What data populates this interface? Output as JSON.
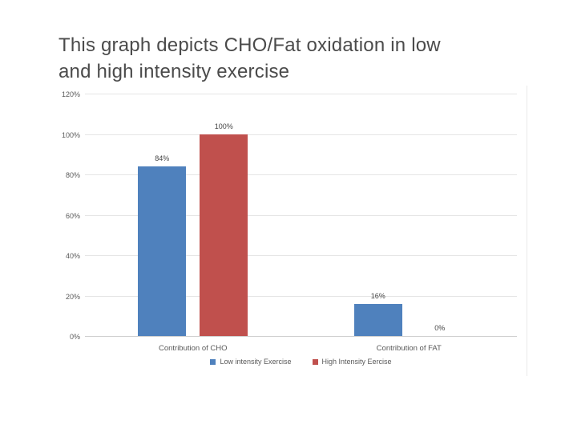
{
  "title": {
    "line1": "This graph depicts CHO/Fat oxidation in low",
    "line2": "and high intensity exercise",
    "full": "This graph depicts CHO/Fat oxidation in low and high intensity exercise"
  },
  "colors": {
    "series_blue": "#4f81bd",
    "series_red": "#c0504d",
    "axis_text": "#595959",
    "gridline": "#e5e5e5",
    "title_text": "#4b4b4b"
  },
  "chart_data": {
    "type": "bar",
    "categories": [
      "Contribution of CHO",
      "Contribution of FAT"
    ],
    "series": [
      {
        "name": "Low intensity Exercise",
        "color": "#4f81bd",
        "values": [
          84,
          16
        ],
        "labels": [
          "84%",
          "16%"
        ]
      },
      {
        "name": "High Intensity Eercise",
        "color": "#c0504d",
        "values": [
          100,
          0
        ],
        "labels": [
          "100%",
          "0%"
        ]
      }
    ],
    "ylim": [
      0,
      120
    ],
    "ytick_values": [
      0,
      20,
      40,
      60,
      80,
      100,
      120
    ],
    "yticks": [
      "0%",
      "20%",
      "40%",
      "60%",
      "80%",
      "100%",
      "120%"
    ],
    "xlabel": "",
    "ylabel": "",
    "grid": true,
    "legend_position": "bottom"
  }
}
